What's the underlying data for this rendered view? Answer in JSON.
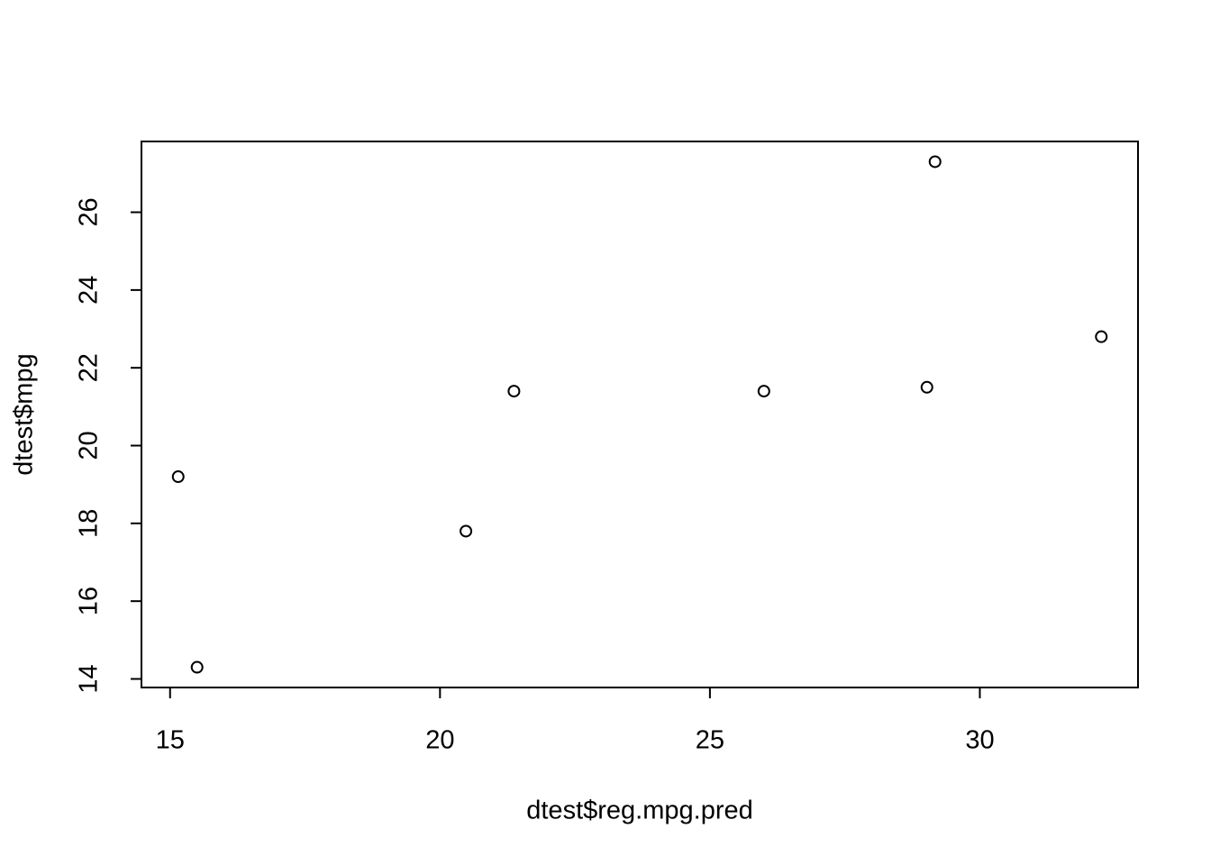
{
  "chart_data": {
    "type": "scatter",
    "xlabel": "dtest$reg.mpg.pred",
    "ylabel": "dtest$mpg",
    "x": [
      15.15,
      15.5,
      20.48,
      21.37,
      26.0,
      29.02,
      29.17,
      32.25
    ],
    "values": [
      19.2,
      14.3,
      17.8,
      21.4,
      21.4,
      21.5,
      27.3,
      22.8
    ],
    "color": "#000000",
    "xlim": [
      14.47,
      32.93
    ],
    "ylim": [
      13.78,
      27.82
    ],
    "xticks": [
      15,
      20,
      25,
      30
    ],
    "yticks": [
      14,
      16,
      18,
      20,
      22,
      24,
      26
    ],
    "grid": false
  }
}
